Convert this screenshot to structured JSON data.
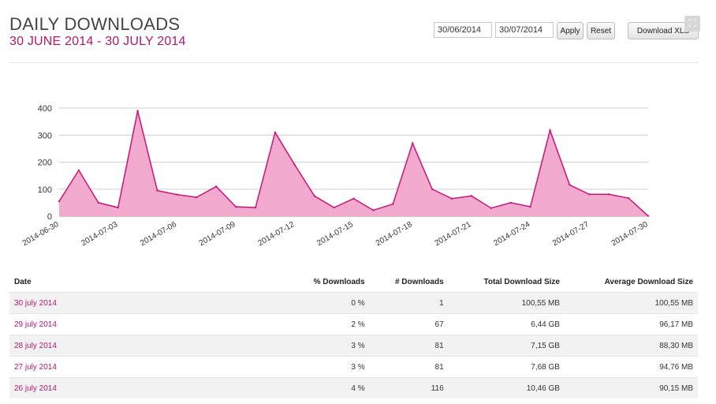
{
  "header": {
    "title": "DAILY DOWNLOADS",
    "subtitle": "30 JUNE 2014 - 30 JULY 2014"
  },
  "controls": {
    "start_date": "30/06/2014",
    "end_date": "30/07/2014",
    "apply_label": "Apply",
    "reset_label": "Reset",
    "download_label": "Download XLS"
  },
  "colors": {
    "accent": "#b0176f",
    "area_fill": "#f2a9ce",
    "line": "#c8157a"
  },
  "chart_data": {
    "type": "area",
    "x": [
      "2014-06-30",
      "2014-07-01",
      "2014-07-02",
      "2014-07-03",
      "2014-07-04",
      "2014-07-05",
      "2014-07-06",
      "2014-07-07",
      "2014-07-08",
      "2014-07-09",
      "2014-07-10",
      "2014-07-11",
      "2014-07-12",
      "2014-07-13",
      "2014-07-14",
      "2014-07-15",
      "2014-07-16",
      "2014-07-17",
      "2014-07-18",
      "2014-07-19",
      "2014-07-20",
      "2014-07-21",
      "2014-07-22",
      "2014-07-23",
      "2014-07-24",
      "2014-07-25",
      "2014-07-26",
      "2014-07-27",
      "2014-07-28",
      "2014-07-29",
      "2014-07-30"
    ],
    "values": [
      55,
      170,
      50,
      32,
      390,
      95,
      80,
      70,
      110,
      35,
      32,
      310,
      190,
      75,
      32,
      65,
      22,
      45,
      270,
      100,
      65,
      75,
      30,
      50,
      35,
      318,
      116,
      81,
      81,
      67,
      1
    ],
    "x_tick_labels": [
      "2014-06-30",
      "2014-07-03",
      "2014-07-06",
      "2014-07-09",
      "2014-07-12",
      "2014-07-15",
      "2014-07-18",
      "2014-07-21",
      "2014-07-24",
      "2014-07-27",
      "2014-07-30"
    ],
    "y_ticks": [
      0,
      100,
      200,
      300,
      400
    ],
    "ylim": [
      0,
      400
    ],
    "grid": true,
    "xlabel": "",
    "ylabel": ""
  },
  "table": {
    "headers": [
      "Date",
      "% Downloads",
      "# Downloads",
      "Total Download Size",
      "Average Download Size"
    ],
    "rows": [
      [
        "30 july 2014",
        "0 %",
        "1",
        "100,55 MB",
        "100,55 MB"
      ],
      [
        "29 july 2014",
        "2 %",
        "67",
        "6,44 GB",
        "96,17 MB"
      ],
      [
        "28 july 2014",
        "3 %",
        "81",
        "7,15 GB",
        "88,30 MB"
      ],
      [
        "27 july 2014",
        "3 %",
        "81",
        "7,68 GB",
        "94,76 MB"
      ],
      [
        "26 july 2014",
        "4 %",
        "116",
        "10,46 GB",
        "90,15 MB"
      ]
    ]
  }
}
